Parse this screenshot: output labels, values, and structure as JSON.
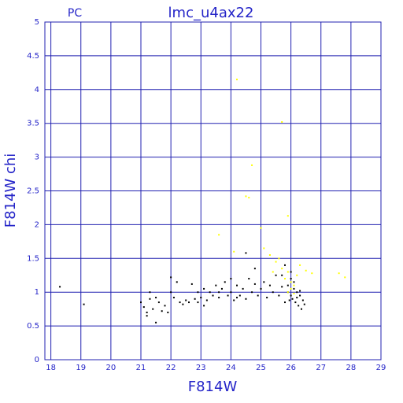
{
  "chart_data": {
    "type": "scatter",
    "title": "lmc_u4ax22",
    "subtitle": "PC",
    "x_label": "F814W",
    "y_label": "F814W chi",
    "xlim": [
      17.8,
      29
    ],
    "ylim": [
      0,
      5
    ],
    "xticks": [
      18,
      19,
      20,
      21,
      22,
      23,
      24,
      25,
      26,
      27,
      28,
      29
    ],
    "yticks": [
      0,
      0.5,
      1,
      1.5,
      2,
      2.5,
      3,
      3.5,
      4,
      4.5,
      5
    ],
    "grid": true,
    "grid_color": "#2020b0",
    "series": [
      {
        "color": "#000000",
        "x": [
          18.3,
          19.1,
          21.0,
          21.1,
          21.2,
          21.2,
          21.3,
          21.4,
          21.5,
          21.5,
          21.6,
          21.7,
          21.8,
          21.9,
          22.0,
          22.0,
          22.1,
          22.2,
          22.3,
          22.4,
          22.5,
          22.6,
          22.7,
          22.8,
          22.9,
          23.0,
          23.1,
          23.2,
          23.3,
          23.4,
          23.5,
          23.6,
          23.7,
          23.8,
          23.9,
          24.0,
          24.0,
          24.1,
          24.2,
          24.3,
          24.4,
          24.5,
          24.5,
          24.6,
          24.7,
          24.8,
          24.9,
          25.0,
          25.1,
          25.2,
          25.3,
          25.4,
          25.5,
          25.6,
          25.7,
          25.8,
          25.8,
          25.9,
          26.0,
          26.0,
          26.05,
          26.1,
          26.15,
          26.2,
          26.25,
          26.3,
          26.35,
          26.4,
          26.1,
          25.9,
          26.2,
          25.95,
          26.3,
          26.45,
          26.0,
          25.7,
          24.2,
          23.6,
          22.9,
          24.8,
          23.1,
          21.3
        ],
        "values": [
          1.08,
          0.82,
          0.85,
          0.78,
          0.7,
          0.65,
          0.9,
          0.75,
          0.55,
          0.92,
          0.85,
          0.72,
          0.8,
          0.7,
          1.22,
          1.0,
          0.92,
          1.15,
          0.85,
          0.82,
          0.88,
          0.85,
          1.12,
          0.9,
          0.85,
          0.92,
          1.05,
          0.88,
          1.0,
          0.95,
          1.1,
          0.92,
          1.05,
          1.15,
          0.95,
          1.2,
          1.0,
          0.88,
          1.1,
          0.95,
          1.05,
          1.58,
          0.9,
          1.2,
          1.0,
          1.12,
          0.95,
          1.05,
          1.15,
          0.92,
          1.1,
          1.0,
          1.25,
          0.95,
          1.08,
          1.4,
          0.85,
          1.0,
          1.2,
          0.95,
          0.9,
          1.05,
          0.85,
          1.0,
          0.8,
          0.95,
          0.75,
          0.88,
          1.15,
          1.1,
          0.92,
          0.88,
          1.02,
          0.82,
          1.3,
          1.25,
          0.92,
          1.0,
          1.0,
          1.35,
          0.8,
          1.0
        ]
      },
      {
        "color": "#ffff00",
        "x": [
          24.2,
          25.7,
          24.7,
          24.6,
          24.5,
          25.9,
          25.0,
          23.6,
          25.1,
          25.3,
          25.5,
          25.7,
          25.8,
          25.9,
          26.0,
          26.1,
          26.2,
          26.3,
          26.5,
          26.7,
          27.6,
          27.8,
          26.0,
          25.9,
          26.1,
          25.6,
          24.1,
          25.4
        ],
        "values": [
          4.15,
          3.52,
          2.88,
          2.4,
          2.42,
          2.13,
          1.95,
          1.85,
          1.65,
          1.55,
          1.45,
          1.35,
          1.2,
          1.3,
          1.15,
          1.1,
          1.25,
          1.4,
          1.32,
          1.28,
          1.28,
          1.22,
          1.05,
          1.0,
          0.98,
          1.5,
          1.6,
          1.3
        ]
      }
    ]
  }
}
